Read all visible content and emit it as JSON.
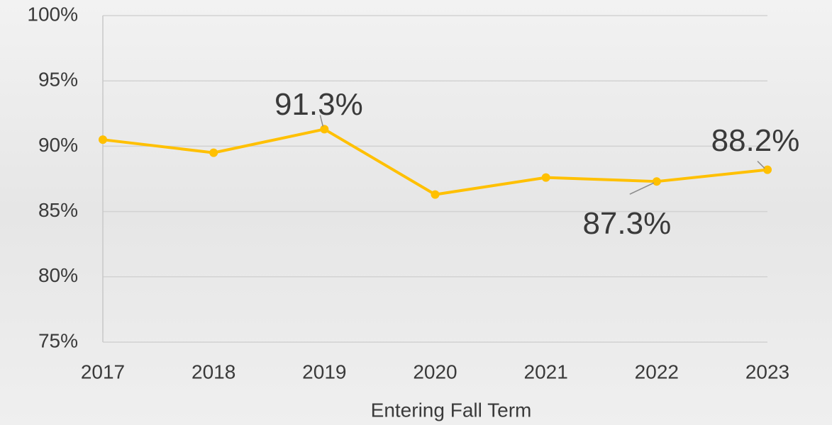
{
  "chart_data": {
    "type": "line",
    "x_label": "Entering Fall Term",
    "categories": [
      "2017",
      "2018",
      "2019",
      "2020",
      "2021",
      "2022",
      "2023"
    ],
    "series": [
      {
        "color": "#ffc000",
        "values": [
          90.5,
          89.5,
          91.3,
          86.3,
          87.6,
          87.3,
          88.2
        ],
        "value_labels": [
          null,
          null,
          "91.3%",
          null,
          null,
          "87.3%",
          "88.2%"
        ]
      }
    ],
    "ylim": [
      75,
      100
    ],
    "yticks": [
      {
        "value": 75,
        "label": "75%"
      },
      {
        "value": 80,
        "label": "80%"
      },
      {
        "value": 85,
        "label": "85%"
      },
      {
        "value": 90,
        "label": "90%"
      },
      {
        "value": 95,
        "label": "95%"
      },
      {
        "value": 100,
        "label": "100%"
      }
    ],
    "grid": true
  }
}
